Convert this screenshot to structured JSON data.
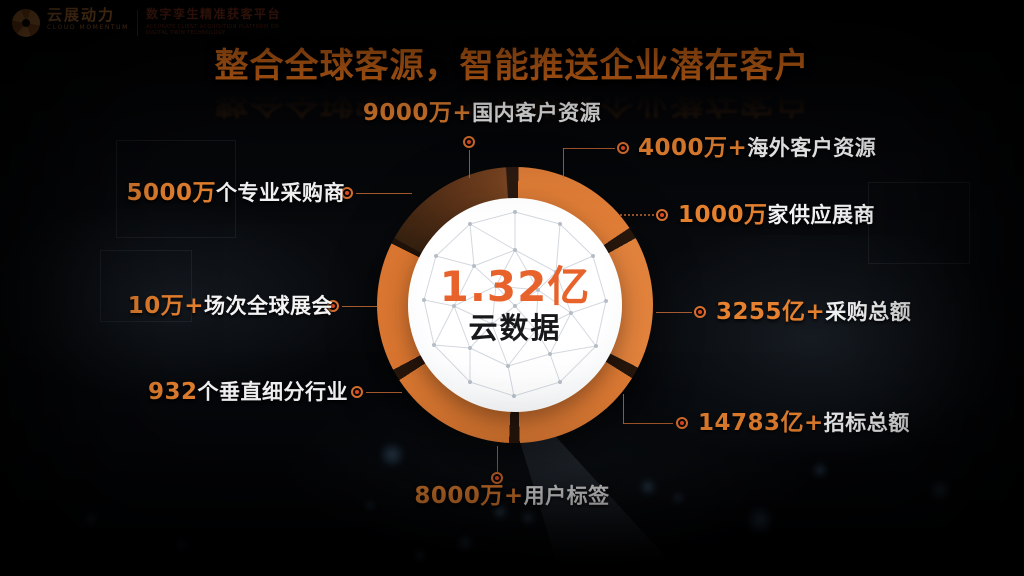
{
  "logo": {
    "brand": "云展动力",
    "brand_en": "CLOUD MOMENTUM",
    "tagline": "数字孪生精准获客平台",
    "tagline_en": "ACCURATE CLIENT ACQUISITION PLATFORM ON DIGITAL TWIN TECHNOLOGY"
  },
  "title": "整合全球客源，智能推送企业潜在客户",
  "center": {
    "value": "1.32亿",
    "label": "云数据"
  },
  "stats": [
    {
      "value": "9000万+",
      "label": "国内客户资源",
      "position": "top"
    },
    {
      "value": "4000万+",
      "label": "海外客户资源",
      "position": "right-1"
    },
    {
      "value": "5000万",
      "label": "个专业采购商",
      "position": "left-1"
    },
    {
      "value": "1000万",
      "label": "家供应展商",
      "position": "right-2"
    },
    {
      "value": "10万+",
      "label": "场次全球展会",
      "position": "left-2"
    },
    {
      "value": "3255亿+",
      "label": "采购总额",
      "position": "right-3"
    },
    {
      "value": "932",
      "label": "个垂直细分行业",
      "position": "left-3"
    },
    {
      "value": "14783亿+",
      "label": "招标总额",
      "position": "right-4"
    },
    {
      "value": "8000万+",
      "label": "用户标签",
      "position": "bottom"
    }
  ],
  "colors": {
    "accent_orange": "#E07A30",
    "ring_orange": "#DC7A36",
    "ring_dark_segment": "#5C3319",
    "center_value_orange": "#E8632C",
    "title_orange": "#F5791B",
    "label_white": "#F4F4F4",
    "center_label_dark": "#17181A",
    "background": "#050508"
  }
}
